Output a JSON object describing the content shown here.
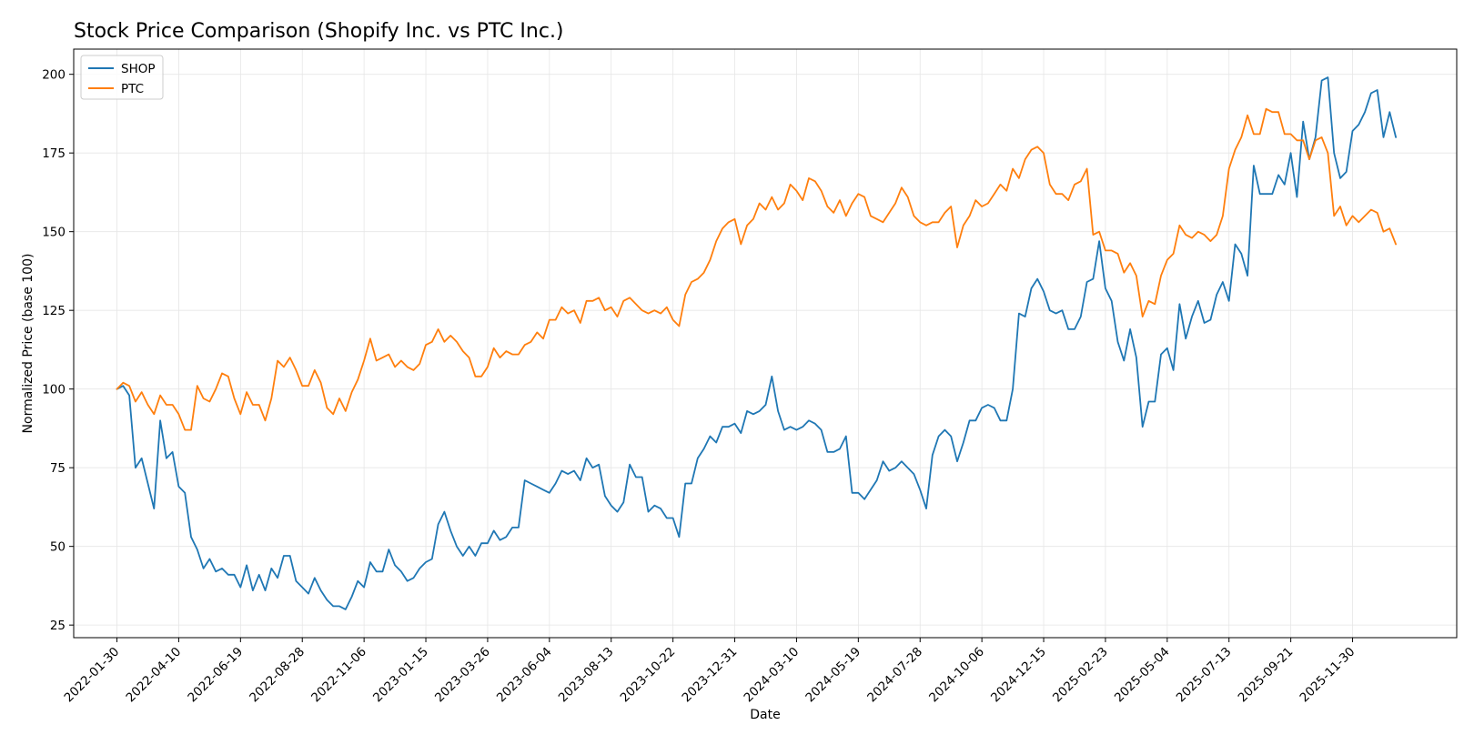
{
  "chart_data": {
    "type": "line",
    "title": "Stock Price Comparison (Shopify Inc. vs PTC Inc.)",
    "xlabel": "Date",
    "ylabel": "Normalized Price (base 100)",
    "ylim": [
      21,
      208
    ],
    "xlim": [
      "2021-12-12",
      "2026-03-28"
    ],
    "grid": true,
    "legend_position": "top-left",
    "x_ticks": [
      "2022-01-30",
      "2022-04-10",
      "2022-06-19",
      "2022-08-28",
      "2022-11-06",
      "2023-01-15",
      "2023-03-26",
      "2023-06-04",
      "2023-08-13",
      "2023-10-22",
      "2023-12-31",
      "2024-03-10",
      "2024-05-19",
      "2024-07-28",
      "2024-10-06",
      "2024-12-15",
      "2025-02-23",
      "2025-05-04",
      "2025-07-13",
      "2025-09-21",
      "2025-11-30"
    ],
    "y_ticks": [
      25,
      50,
      75,
      100,
      125,
      150,
      175,
      200
    ],
    "start_date": "2022-01-30",
    "interval_days": 7,
    "series": [
      {
        "name": "SHOP",
        "color": "#1f77b4",
        "values": [
          100,
          101,
          98,
          75,
          78,
          70,
          62,
          90,
          78,
          80,
          69,
          67,
          53,
          49,
          43,
          46,
          42,
          43,
          41,
          41,
          37,
          44,
          36,
          41,
          36,
          43,
          40,
          47,
          47,
          39,
          37,
          35,
          40,
          36,
          33,
          31,
          31,
          30,
          34,
          39,
          37,
          45,
          42,
          42,
          49,
          44,
          42,
          39,
          40,
          43,
          45,
          46,
          57,
          61,
          55,
          50,
          47,
          50,
          47,
          51,
          51,
          55,
          52,
          53,
          56,
          56,
          71,
          70,
          69,
          68,
          67,
          70,
          74,
          73,
          74,
          71,
          78,
          75,
          76,
          66,
          63,
          61,
          64,
          76,
          72,
          72,
          61,
          63,
          62,
          59,
          59,
          53,
          70,
          70,
          78,
          81,
          85,
          83,
          88,
          88,
          89,
          86,
          93,
          92,
          93,
          95,
          104,
          93,
          87,
          88,
          87,
          88,
          90,
          89,
          87,
          80,
          80,
          81,
          85,
          67,
          67,
          65,
          68,
          71,
          77,
          74,
          75,
          77,
          75,
          73,
          68,
          62,
          79,
          85,
          87,
          85,
          77,
          83,
          90,
          90,
          94,
          95,
          94,
          90,
          90,
          100,
          124,
          123,
          132,
          135,
          131,
          125,
          124,
          125,
          119,
          119,
          123,
          134,
          135,
          147,
          132,
          128,
          115,
          109,
          119,
          110,
          88,
          96,
          96,
          111,
          113,
          106,
          127,
          116,
          123,
          128,
          121,
          122,
          130,
          134,
          128,
          146,
          143,
          136,
          171,
          162,
          162,
          162,
          168,
          165,
          175,
          161,
          185,
          173,
          180,
          198,
          199,
          175,
          167,
          169,
          182,
          184,
          188,
          194,
          195,
          180,
          188,
          180
        ]
      },
      {
        "name": "PTC",
        "color": "#ff7f0e",
        "values": [
          100,
          102,
          101,
          96,
          99,
          95,
          92,
          98,
          95,
          95,
          92,
          87,
          87,
          101,
          97,
          96,
          100,
          105,
          104,
          97,
          92,
          99,
          95,
          95,
          90,
          97,
          109,
          107,
          110,
          106,
          101,
          101,
          106,
          102,
          94,
          92,
          97,
          93,
          99,
          103,
          109,
          116,
          109,
          110,
          111,
          107,
          109,
          107,
          106,
          108,
          114,
          115,
          119,
          115,
          117,
          115,
          112,
          110,
          104,
          104,
          107,
          113,
          110,
          112,
          111,
          111,
          114,
          115,
          118,
          116,
          122,
          122,
          126,
          124,
          125,
          121,
          128,
          128,
          129,
          125,
          126,
          123,
          128,
          129,
          127,
          125,
          124,
          125,
          124,
          126,
          122,
          120,
          130,
          134,
          135,
          137,
          141,
          147,
          151,
          153,
          154,
          146,
          152,
          154,
          159,
          157,
          161,
          157,
          159,
          165,
          163,
          160,
          167,
          166,
          163,
          158,
          156,
          160,
          155,
          159,
          162,
          161,
          155,
          154,
          153,
          156,
          159,
          164,
          161,
          155,
          153,
          152,
          153,
          153,
          156,
          158,
          145,
          152,
          155,
          160,
          158,
          159,
          162,
          165,
          163,
          170,
          167,
          173,
          176,
          177,
          175,
          165,
          162,
          162,
          160,
          165,
          166,
          170,
          149,
          150,
          144,
          144,
          143,
          137,
          140,
          136,
          123,
          128,
          127,
          136,
          141,
          143,
          152,
          149,
          148,
          150,
          149,
          147,
          149,
          155,
          170,
          176,
          180,
          187,
          181,
          181,
          189,
          188,
          188,
          181,
          181,
          179,
          179,
          173,
          179,
          180,
          175,
          155,
          158,
          152,
          155,
          153,
          155,
          157,
          156,
          150,
          151,
          146
        ]
      }
    ]
  }
}
